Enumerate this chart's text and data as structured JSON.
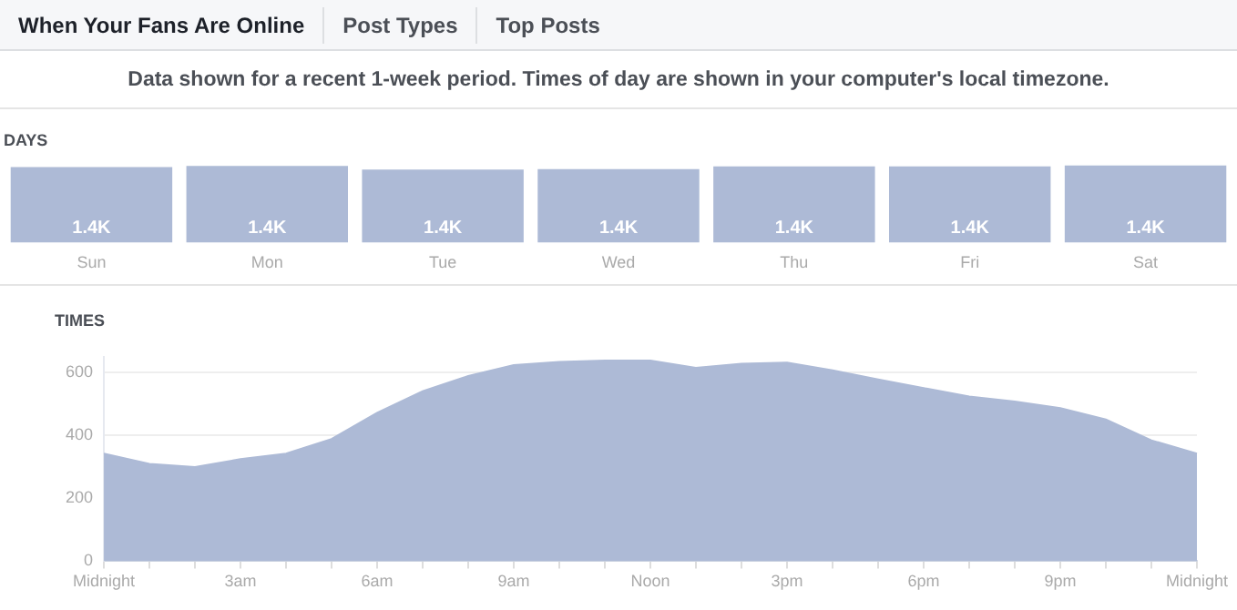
{
  "chart_data": [
    {
      "type": "bar",
      "title": "DAYS",
      "annotations": [
        "When Your Fans Are Online",
        "Post Types",
        "Top Posts",
        "Data shown for a recent 1-week period. Times of day are shown in your computer's local timezone."
      ],
      "categories": [
        "Sun",
        "Mon",
        "Tue",
        "Wed",
        "Thu",
        "Fri",
        "Sat"
      ],
      "values": [
        1400,
        1420,
        1350,
        1360,
        1410,
        1410,
        1430
      ],
      "value_labels": [
        "1.4K",
        "1.4K",
        "1.4K",
        "1.4K",
        "1.4K",
        "1.4K",
        "1.4K"
      ],
      "color": "#adbad6",
      "tick_labels": "x"
    },
    {
      "type": "area",
      "title": "TIMES",
      "categories": [
        "Midnight",
        null,
        null,
        "3am",
        null,
        null,
        "6am",
        null,
        null,
        "9am",
        null,
        null,
        "Noon",
        null,
        null,
        "3pm",
        null,
        null,
        "6pm",
        null,
        null,
        "9pm",
        null,
        null,
        "Midnight"
      ],
      "values": [
        342,
        309,
        299,
        324,
        342,
        388,
        471,
        540,
        588,
        623,
        633,
        637,
        637,
        614,
        627,
        631,
        606,
        577,
        550,
        523,
        507,
        486,
        450,
        384,
        342
      ],
      "color": "#adbad6",
      "ylim": [
        0,
        650
      ],
      "yticks": [
        0,
        200,
        400,
        600
      ],
      "grid": "y"
    }
  ]
}
